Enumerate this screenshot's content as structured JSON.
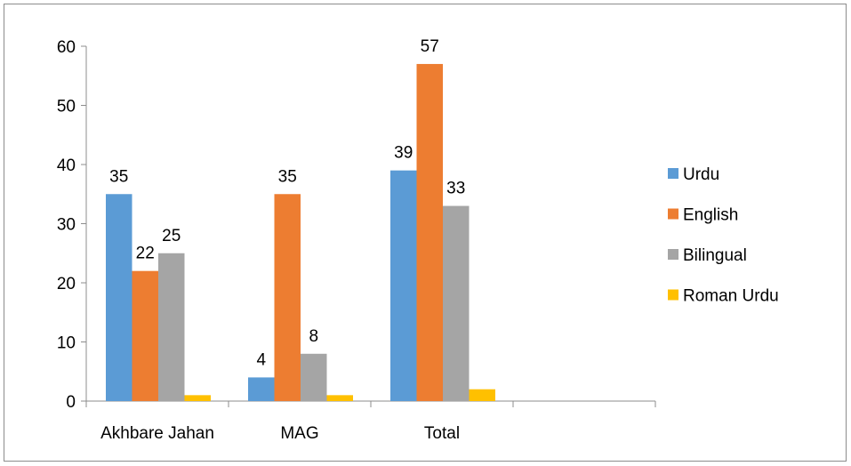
{
  "chart_data": {
    "type": "bar",
    "categories": [
      "Akhbare Jahan",
      "MAG",
      "Total",
      ""
    ],
    "series": [
      {
        "name": "Urdu",
        "color": "#5B9BD5",
        "values": [
          35,
          4,
          39,
          null
        ]
      },
      {
        "name": "English",
        "color": "#ED7D31",
        "values": [
          22,
          35,
          57,
          null
        ]
      },
      {
        "name": "Bilingual",
        "color": "#A5A5A5",
        "values": [
          25,
          8,
          33,
          null
        ]
      },
      {
        "name": "Roman Urdu",
        "color": "#FFC000",
        "values": [
          1,
          1,
          2,
          null
        ]
      }
    ],
    "data_labels": {
      "Urdu": [
        "35",
        "4",
        "39",
        ""
      ],
      "English": [
        "22",
        "35",
        "57",
        ""
      ],
      "Bilingual": [
        "25",
        "8",
        "33",
        ""
      ],
      "Roman Urdu": [
        "",
        "",
        "",
        ""
      ]
    },
    "y_ticks": [
      "0",
      "10",
      "20",
      "30",
      "40",
      "50",
      "60"
    ],
    "ylim": [
      0,
      60
    ],
    "title": "",
    "xlabel": "",
    "ylabel": "",
    "grid": false,
    "legend_position": "right"
  }
}
